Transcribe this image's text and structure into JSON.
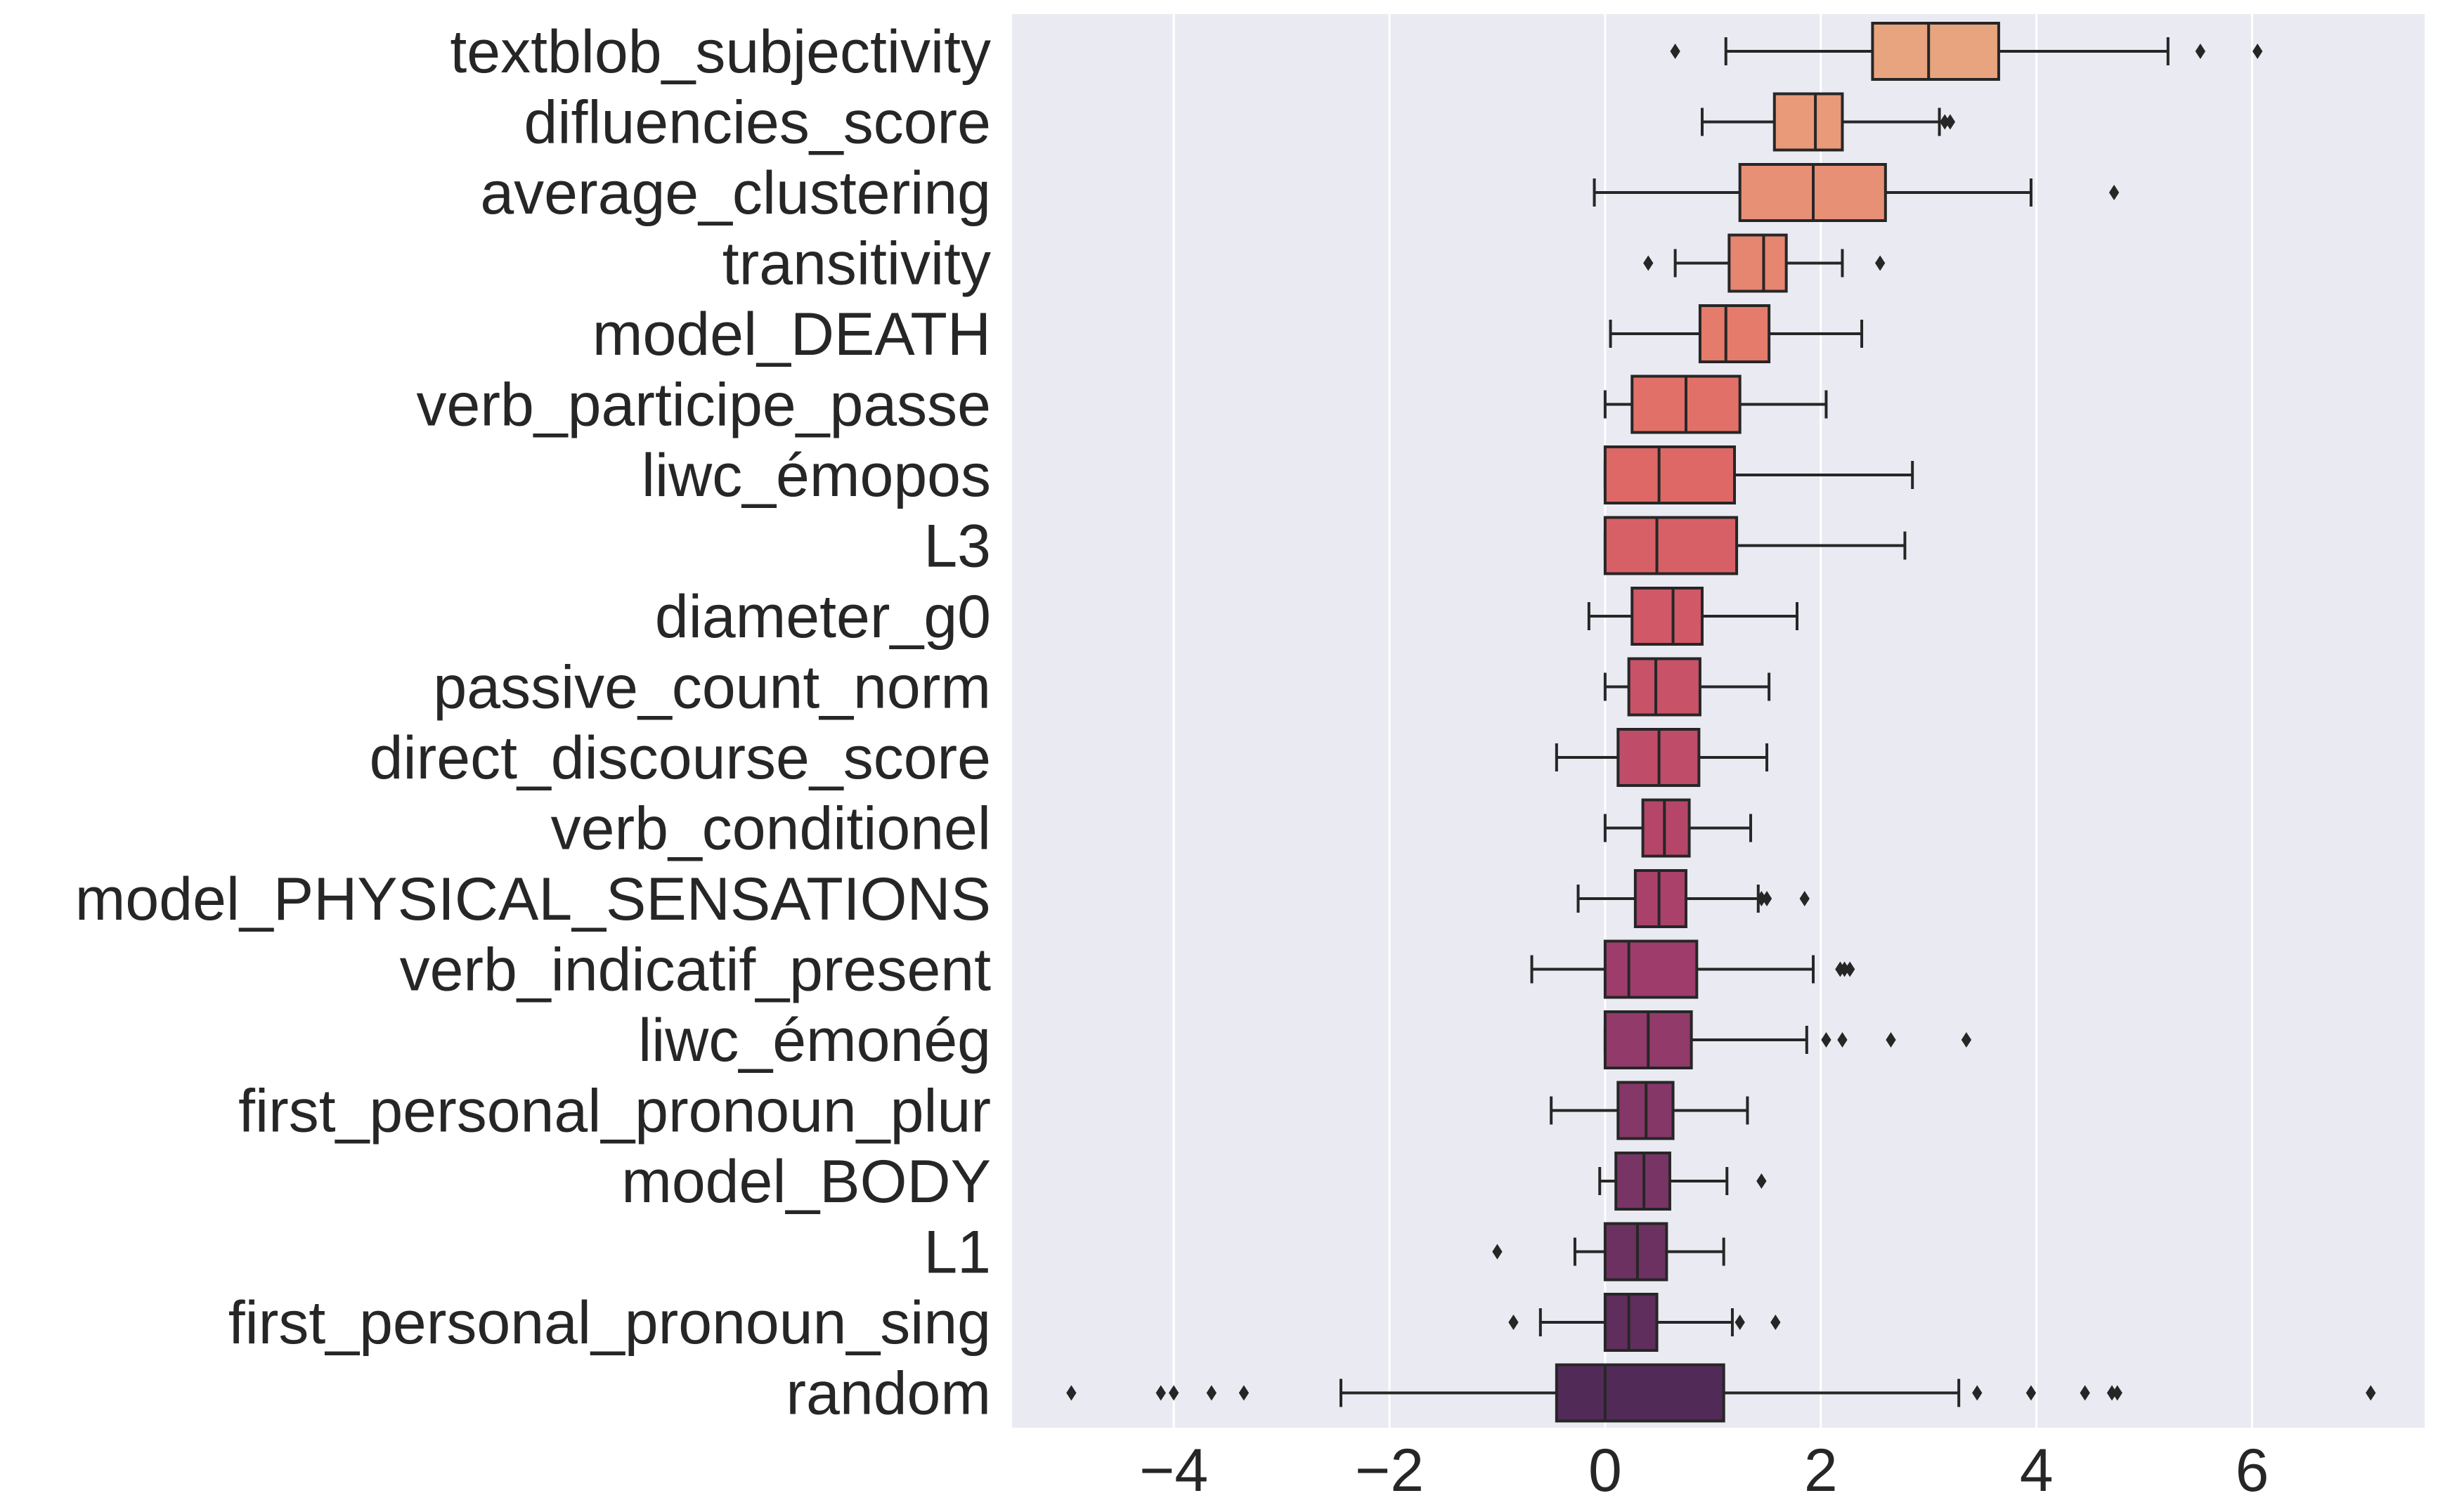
{
  "chart_data": {
    "type": "boxplot",
    "orientation": "horizontal",
    "xlim": [
      -5.5,
      7.6
    ],
    "xticks": [
      -4,
      -2,
      0,
      2,
      4,
      6
    ],
    "xtick_labels": [
      "−4",
      "−2",
      "0",
      "2",
      "4",
      "6"
    ],
    "xlabel": "",
    "ylabel": "",
    "grid": "vertical",
    "background": "#EAEAF2",
    "categories": [
      "textblob_subjectivity",
      "difluencies_score",
      "average_clustering",
      "transitivity",
      "model_DEATH",
      "verb_participe_passe",
      "liwc_émopos",
      "L3",
      "diameter_g0",
      "passive_count_norm",
      "direct_discourse_score",
      "verb_conditionel",
      "model_PHYSICAL_SENSATIONS",
      "verb_indicatif_present",
      "liwc_émonég",
      "first_personal_pronoun_plur",
      "model_BODY",
      "L1",
      "first_personal_pronoun_sing",
      "random"
    ],
    "boxes": [
      {
        "whisker_low": 1.12,
        "q1": 2.48,
        "median": 3.0,
        "q3": 3.65,
        "whisker_high": 5.22,
        "outliers": [
          0.65,
          5.52,
          6.05
        ],
        "color": "#E8A47E"
      },
      {
        "whisker_low": 0.9,
        "q1": 1.57,
        "median": 1.95,
        "q3": 2.2,
        "whisker_high": 3.1,
        "outliers": [
          3.15,
          3.2
        ],
        "color": "#E89A79"
      },
      {
        "whisker_low": -0.1,
        "q1": 1.25,
        "median": 1.93,
        "q3": 2.6,
        "whisker_high": 3.95,
        "outliers": [
          4.72
        ],
        "color": "#E79075"
      },
      {
        "whisker_low": 0.65,
        "q1": 1.15,
        "median": 1.47,
        "q3": 1.68,
        "whisker_high": 2.2,
        "outliers": [
          0.4,
          2.55
        ],
        "color": "#E68570"
      },
      {
        "whisker_low": 0.05,
        "q1": 0.88,
        "median": 1.12,
        "q3": 1.52,
        "whisker_high": 2.38,
        "outliers": [],
        "color": "#E47B6B"
      },
      {
        "whisker_low": 0.0,
        "q1": 0.25,
        "median": 0.75,
        "q3": 1.25,
        "whisker_high": 2.05,
        "outliers": [],
        "color": "#E17168"
      },
      {
        "whisker_low": 0.0,
        "q1": 0.0,
        "median": 0.5,
        "q3": 1.2,
        "whisker_high": 2.85,
        "outliers": [],
        "color": "#DD6866"
      },
      {
        "whisker_low": 0.0,
        "q1": 0.0,
        "median": 0.48,
        "q3": 1.22,
        "whisker_high": 2.78,
        "outliers": [],
        "color": "#D76066"
      },
      {
        "whisker_low": -0.15,
        "q1": 0.25,
        "median": 0.63,
        "q3": 0.9,
        "whisker_high": 1.78,
        "outliers": [],
        "color": "#D05867"
      },
      {
        "whisker_low": 0.0,
        "q1": 0.22,
        "median": 0.47,
        "q3": 0.88,
        "whisker_high": 1.52,
        "outliers": [],
        "color": "#C85268"
      },
      {
        "whisker_low": -0.45,
        "q1": 0.12,
        "median": 0.5,
        "q3": 0.87,
        "whisker_high": 1.5,
        "outliers": [],
        "color": "#BF4C69"
      },
      {
        "whisker_low": 0.0,
        "q1": 0.35,
        "median": 0.55,
        "q3": 0.78,
        "whisker_high": 1.35,
        "outliers": [],
        "color": "#B5466A"
      },
      {
        "whisker_low": -0.25,
        "q1": 0.28,
        "median": 0.5,
        "q3": 0.75,
        "whisker_high": 1.42,
        "outliers": [
          1.45,
          1.5,
          1.85
        ],
        "color": "#AA416B"
      },
      {
        "whisker_low": -0.68,
        "q1": 0.0,
        "median": 0.22,
        "q3": 0.85,
        "whisker_high": 1.93,
        "outliers": [
          2.18,
          2.22,
          2.27
        ],
        "color": "#9E3D6B"
      },
      {
        "whisker_low": 0.0,
        "q1": 0.0,
        "median": 0.4,
        "q3": 0.8,
        "whisker_high": 1.87,
        "outliers": [
          2.05,
          2.2,
          2.65,
          3.35
        ],
        "color": "#923A6A"
      },
      {
        "whisker_low": -0.5,
        "q1": 0.12,
        "median": 0.38,
        "q3": 0.63,
        "whisker_high": 1.32,
        "outliers": [],
        "color": "#853768"
      },
      {
        "whisker_low": -0.05,
        "q1": 0.1,
        "median": 0.36,
        "q3": 0.6,
        "whisker_high": 1.13,
        "outliers": [
          1.45
        ],
        "color": "#783465"
      },
      {
        "whisker_low": -0.28,
        "q1": 0.0,
        "median": 0.3,
        "q3": 0.57,
        "whisker_high": 1.1,
        "outliers": [
          -1.0
        ],
        "color": "#6C3161"
      },
      {
        "whisker_low": -0.6,
        "q1": 0.0,
        "median": 0.22,
        "q3": 0.48,
        "whisker_high": 1.18,
        "outliers": [
          -0.85,
          1.25,
          1.58
        ],
        "color": "#5F2E5D"
      },
      {
        "whisker_low": -2.45,
        "q1": -0.45,
        "median": 0.0,
        "q3": 1.1,
        "whisker_high": 3.28,
        "outliers": [
          -4.95,
          -4.12,
          -4.0,
          -3.65,
          -3.35,
          3.45,
          3.95,
          4.45,
          4.7,
          4.75,
          7.1
        ],
        "color": "#522A58"
      }
    ]
  }
}
